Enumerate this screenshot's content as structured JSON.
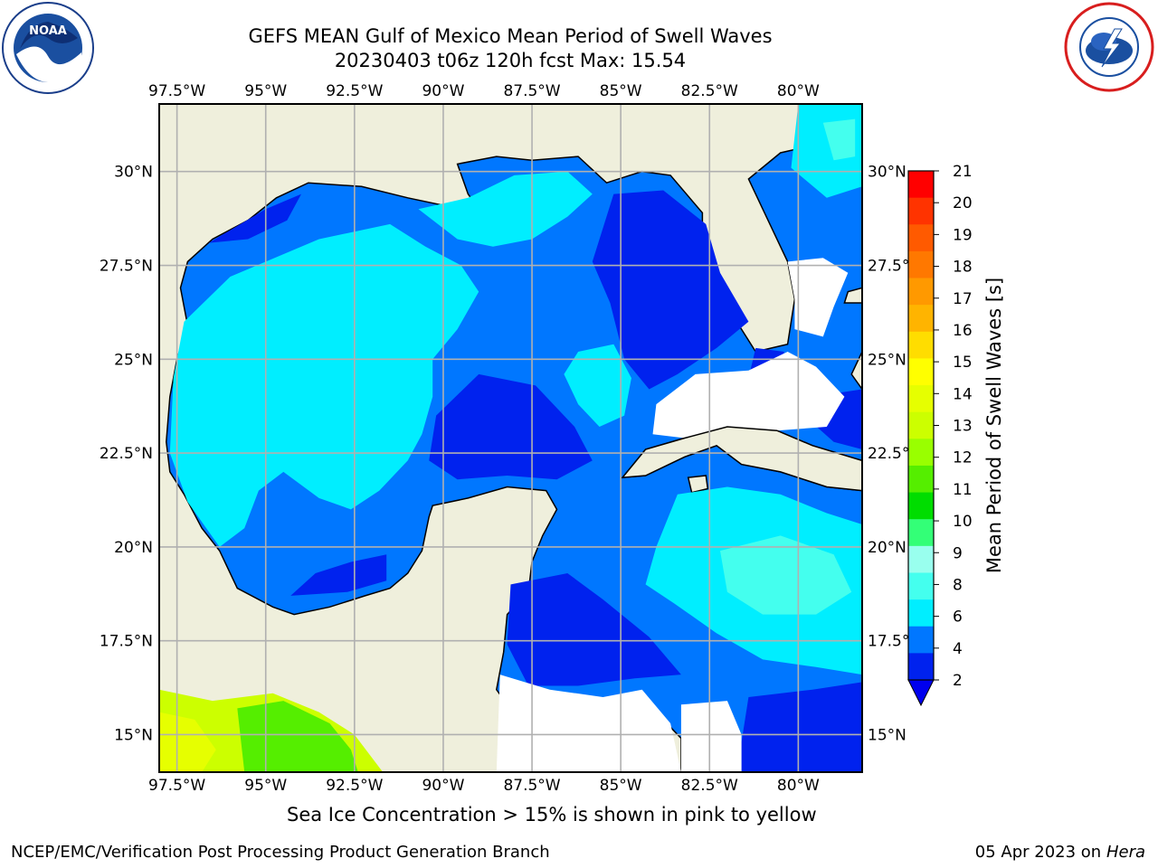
{
  "title_line1": "GEFS MEAN Gulf of Mexico Mean Period of Swell Waves",
  "title_line2": "20230403 t06z 120h fcst   Max: 15.54",
  "lon_labels": [
    "97.5°W",
    "95°W",
    "92.5°W",
    "90°W",
    "87.5°W",
    "85°W",
    "82.5°W",
    "80°W"
  ],
  "lat_labels": [
    "30°N",
    "27.5°N",
    "25°N",
    "22.5°N",
    "20°N",
    "17.5°N",
    "15°N"
  ],
  "map_extent": {
    "lon_min": -98.0,
    "lon_max": -78.2,
    "lat_min": 14.0,
    "lat_max": 31.8
  },
  "colorbar": {
    "label": "Mean Period of Swell Waves [s]",
    "ticks": [
      "21",
      "20",
      "19",
      "18",
      "17",
      "16",
      "15",
      "14",
      "13",
      "12",
      "11",
      "10",
      "9",
      "8",
      "6",
      "4",
      "2"
    ],
    "colors": [
      "#ff0000",
      "#ff3300",
      "#ff5a00",
      "#ff7800",
      "#ff9900",
      "#ffb400",
      "#ffdd00",
      "#ffff00",
      "#e6ff00",
      "#ccff00",
      "#99ff00",
      "#55ee00",
      "#00dd00",
      "#33ff77",
      "#99ffee",
      "#44ffee",
      "#00eeff",
      "#0077ff",
      "#0022ee"
    ],
    "extend_color": "#0000ee"
  },
  "colors": {
    "land": "#efefdc",
    "grid": "#b0b0b0",
    "no_data": "#ffffff"
  },
  "note": "Sea Ice Concentration > 15% is shown in pink to yellow",
  "footer_left": "NCEP/EMC/Verification Post Processing Product Generation Branch",
  "footer_date": "05 Apr 2023 on",
  "footer_host": "Hera",
  "logos": {
    "left": "noaa-logo",
    "right": "nws-logo"
  }
}
